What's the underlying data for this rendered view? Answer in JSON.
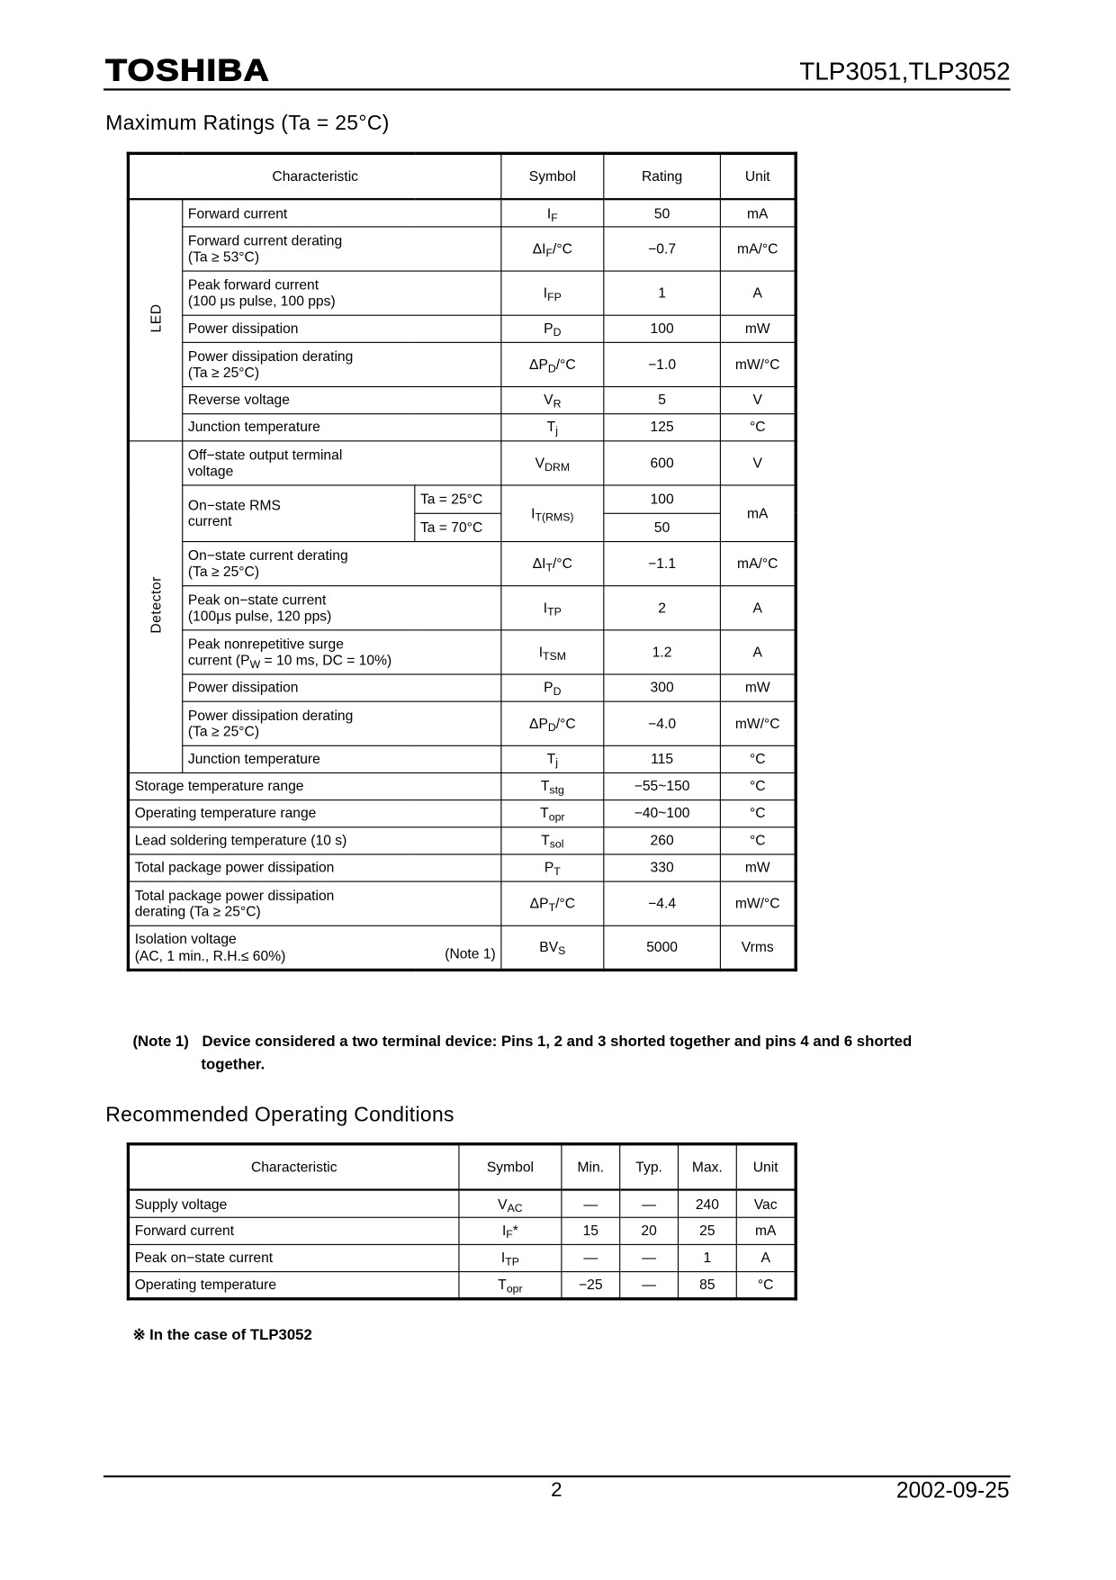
{
  "header": {
    "logo": "TOSHIBA",
    "doc_title": "TLP3051,TLP3052"
  },
  "max_ratings": {
    "title": "Maximum Ratings (Ta = 25°C)",
    "columns": [
      "Characteristic",
      "Symbol",
      "Rating",
      "Unit"
    ],
    "sections": [
      {
        "label": "LED",
        "rows": [
          {
            "char": [
              "Forward current"
            ],
            "symbol": {
              "text": "I",
              "sub": "F",
              "after": ""
            },
            "rating": "50",
            "unit": "mA"
          },
          {
            "char": [
              "Forward current derating",
              "(Ta ≥ 53°C)"
            ],
            "symbol": {
              "text": "ΔI",
              "sub": "F",
              "after": "/°C"
            },
            "rating": "−0.7",
            "unit": "mA/°C"
          },
          {
            "char": [
              "Peak forward current",
              "(100 μs pulse, 100 pps)"
            ],
            "symbol": {
              "text": "I",
              "sub": "FP",
              "after": ""
            },
            "rating": "1",
            "unit": "A"
          },
          {
            "char": [
              "Power dissipation"
            ],
            "symbol": {
              "text": "P",
              "sub": "D",
              "after": ""
            },
            "rating": "100",
            "unit": "mW"
          },
          {
            "char": [
              "Power dissipation derating",
              "(Ta ≥ 25°C)"
            ],
            "symbol": {
              "text": "ΔP",
              "sub": "D",
              "after": "/°C"
            },
            "rating": "−1.0",
            "unit": "mW/°C"
          },
          {
            "char": [
              "Reverse voltage"
            ],
            "symbol": {
              "text": "V",
              "sub": "R",
              "after": ""
            },
            "rating": "5",
            "unit": "V"
          },
          {
            "char": [
              "Junction temperature"
            ],
            "symbol": {
              "text": "T",
              "sub": "j",
              "after": ""
            },
            "rating": "125",
            "unit": "°C"
          }
        ]
      },
      {
        "label": "Detector",
        "rows": [
          {
            "char": [
              "Off−state output terminal",
              "voltage"
            ],
            "symbol": {
              "text": "V",
              "sub": "DRM",
              "after": ""
            },
            "rating": "600",
            "unit": "V"
          },
          {
            "char": [
              "On−state RMS",
              "current"
            ],
            "conditions": [
              "Ta = 25°C",
              "Ta = 70°C"
            ],
            "symbol": {
              "text": "I",
              "sub": "T(RMS)",
              "after": ""
            },
            "ratings": [
              "100",
              "50"
            ],
            "unit": "mA"
          },
          {
            "char": [
              "On−state current derating",
              "(Ta ≥ 25°C)"
            ],
            "symbol": {
              "text": "ΔI",
              "sub": "T",
              "after": "/°C"
            },
            "rating": "−1.1",
            "unit": "mA/°C"
          },
          {
            "char": [
              "Peak on−state current",
              "(100μs pulse, 120 pps)"
            ],
            "symbol": {
              "text": "I",
              "sub": "TP",
              "after": ""
            },
            "rating": "2",
            "unit": "A"
          },
          {
            "char": [
              "Peak nonrepetitive surge",
              {
                "text": "current (P",
                "sub": "W",
                "after": " = 10 ms, DC = 10%)"
              }
            ],
            "symbol": {
              "text": "I",
              "sub": "TSM",
              "after": ""
            },
            "rating": "1.2",
            "unit": "A"
          },
          {
            "char": [
              "Power dissipation"
            ],
            "symbol": {
              "text": "P",
              "sub": "D",
              "after": ""
            },
            "rating": "300",
            "unit": "mW"
          },
          {
            "char": [
              "Power dissipation derating",
              "(Ta ≥ 25°C)"
            ],
            "symbol": {
              "text": "ΔP",
              "sub": "D",
              "after": "/°C"
            },
            "rating": "−4.0",
            "unit": "mW/°C"
          },
          {
            "char": [
              "Junction temperature"
            ],
            "symbol": {
              "text": "T",
              "sub": "j",
              "after": ""
            },
            "rating": "115",
            "unit": "°C"
          }
        ]
      }
    ],
    "general_rows": [
      {
        "char": [
          "Storage temperature range"
        ],
        "symbol": {
          "text": "T",
          "sub": "stg",
          "after": ""
        },
        "rating": "−55~150",
        "unit": "°C"
      },
      {
        "char": [
          "Operating temperature range"
        ],
        "symbol": {
          "text": "T",
          "sub": "opr",
          "after": ""
        },
        "rating": "−40~100",
        "unit": "°C"
      },
      {
        "char": [
          "Lead soldering temperature (10 s)"
        ],
        "symbol": {
          "text": "T",
          "sub": "sol",
          "after": ""
        },
        "rating": "260",
        "unit": "°C"
      },
      {
        "char": [
          "Total package power dissipation"
        ],
        "symbol": {
          "text": "P",
          "sub": "T",
          "after": ""
        },
        "rating": "330",
        "unit": "mW"
      },
      {
        "char": [
          "Total package power dissipation",
          "derating (Ta ≥ 25°C)"
        ],
        "symbol": {
          "text": "ΔP",
          "sub": "T",
          "after": "/°C"
        },
        "rating": "−4.4",
        "unit": "mW/°C"
      },
      {
        "char": [
          "Isolation voltage",
          "(AC, 1 min., R.H.≤ 60%)"
        ],
        "note_ref": "(Note 1)",
        "symbol": {
          "text": "BV",
          "sub": "S",
          "after": ""
        },
        "rating": "5000",
        "unit": "Vrms"
      }
    ],
    "note": {
      "label": "(Note 1)",
      "text_line1": "Device considered a two terminal device: Pins 1, 2 and 3 shorted together and pins 4 and 6 shorted",
      "text_line2": "together."
    }
  },
  "operating": {
    "title": "Recommended Operating Conditions",
    "columns": [
      "Characteristic",
      "Symbol",
      "Min.",
      "Typ.",
      "Max.",
      "Unit"
    ],
    "rows": [
      {
        "char": "Supply voltage",
        "symbol": {
          "text": "V",
          "sub": "AC",
          "after": ""
        },
        "min": "—",
        "typ": "—",
        "max": "240",
        "unit": "Vac"
      },
      {
        "char": "Forward current",
        "symbol": {
          "text": "I",
          "sub": "F",
          "after": "*"
        },
        "min": "15",
        "typ": "20",
        "max": "25",
        "unit": "mA"
      },
      {
        "char": "Peak on−state current",
        "symbol": {
          "text": "I",
          "sub": "TP",
          "after": ""
        },
        "min": "—",
        "typ": "—",
        "max": "1",
        "unit": "A"
      },
      {
        "char": "Operating temperature",
        "symbol": {
          "text": "T",
          "sub": "opr",
          "after": ""
        },
        "min": "−25",
        "typ": "—",
        "max": "85",
        "unit": "°C"
      }
    ],
    "footnote": "※  In the case of TLP3052"
  },
  "footer": {
    "page": "2",
    "date": "2002-09-25"
  }
}
